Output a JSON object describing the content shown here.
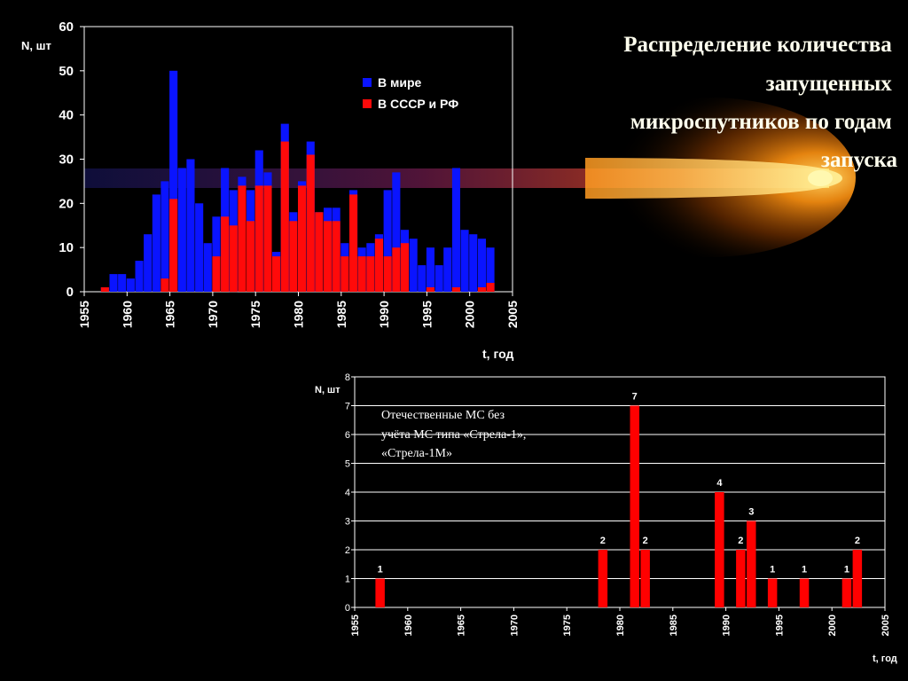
{
  "slide": {
    "title_lines": [
      "Распределение количества",
      "запущенных",
      "микроспутников по годам",
      "запуска"
    ]
  },
  "chart_data": [
    {
      "type": "bar",
      "title": "",
      "ylabel": "N, шт",
      "xlabel": "t, год",
      "xlim": [
        1955,
        2005
      ],
      "ylim": [
        0,
        60
      ],
      "xticks": [
        1955,
        1960,
        1965,
        1970,
        1975,
        1980,
        1985,
        1990,
        1995,
        2000,
        2005
      ],
      "yticks": [
        0,
        10,
        20,
        30,
        40,
        50,
        60
      ],
      "grid": false,
      "legend": "top-right",
      "overlap": true,
      "series": [
        {
          "name": "В мире",
          "color": "#0a14ff",
          "points": [
            [
              1957,
              1
            ],
            [
              1958,
              4
            ],
            [
              1959,
              4
            ],
            [
              1960,
              3
            ],
            [
              1961,
              7
            ],
            [
              1962,
              13
            ],
            [
              1963,
              22
            ],
            [
              1964,
              25
            ],
            [
              1965,
              50
            ],
            [
              1966,
              28
            ],
            [
              1967,
              30
            ],
            [
              1968,
              20
            ],
            [
              1969,
              11
            ],
            [
              1970,
              17
            ],
            [
              1971,
              28
            ],
            [
              1972,
              23
            ],
            [
              1973,
              26
            ],
            [
              1974,
              23
            ],
            [
              1975,
              32
            ],
            [
              1976,
              27
            ],
            [
              1977,
              9
            ],
            [
              1978,
              38
            ],
            [
              1979,
              18
            ],
            [
              1980,
              25
            ],
            [
              1981,
              34
            ],
            [
              1982,
              18
            ],
            [
              1983,
              19
            ],
            [
              1984,
              19
            ],
            [
              1985,
              11
            ],
            [
              1986,
              23
            ],
            [
              1987,
              10
            ],
            [
              1988,
              11
            ],
            [
              1989,
              13
            ],
            [
              1990,
              23
            ],
            [
              1991,
              27
            ],
            [
              1992,
              14
            ],
            [
              1993,
              12
            ],
            [
              1994,
              6
            ],
            [
              1995,
              10
            ],
            [
              1996,
              6
            ],
            [
              1997,
              10
            ],
            [
              1998,
              28
            ],
            [
              1999,
              14
            ],
            [
              2000,
              13
            ],
            [
              2001,
              12
            ],
            [
              2002,
              10
            ]
          ]
        },
        {
          "name": "В СССР и РФ",
          "color": "#ff0a0a",
          "points": [
            [
              1957,
              1
            ],
            [
              1964,
              3
            ],
            [
              1965,
              21
            ],
            [
              1970,
              8
            ],
            [
              1971,
              17
            ],
            [
              1972,
              15
            ],
            [
              1973,
              24
            ],
            [
              1974,
              16
            ],
            [
              1975,
              24
            ],
            [
              1976,
              24
            ],
            [
              1977,
              8
            ],
            [
              1978,
              34
            ],
            [
              1979,
              16
            ],
            [
              1980,
              24
            ],
            [
              1981,
              31
            ],
            [
              1982,
              18
            ],
            [
              1983,
              16
            ],
            [
              1984,
              16
            ],
            [
              1985,
              8
            ],
            [
              1986,
              22
            ],
            [
              1987,
              8
            ],
            [
              1988,
              8
            ],
            [
              1989,
              12
            ],
            [
              1990,
              8
            ],
            [
              1991,
              10
            ],
            [
              1992,
              11
            ],
            [
              1995,
              1
            ],
            [
              1998,
              1
            ],
            [
              2001,
              1
            ],
            [
              2002,
              2
            ]
          ]
        }
      ]
    },
    {
      "type": "bar",
      "title": "",
      "annotation_lines": [
        "Отечественные МС без",
        "учёта МС типа «Стрела-1»,",
        "«Стрела-1М»"
      ],
      "ylabel": "N, шт",
      "xlabel": "t, год",
      "xlim": [
        1955,
        2005
      ],
      "ylim": [
        0,
        8
      ],
      "xticks": [
        1955,
        1960,
        1965,
        1970,
        1975,
        1980,
        1985,
        1990,
        1995,
        2000,
        2005
      ],
      "yticks": [
        0,
        1,
        2,
        3,
        4,
        5,
        6,
        7,
        8
      ],
      "grid": true,
      "series": [
        {
          "name": "",
          "color": "#ff0000",
          "data_labels": true,
          "points": [
            [
              1957,
              1
            ],
            [
              1978,
              2
            ],
            [
              1981,
              7
            ],
            [
              1982,
              2
            ],
            [
              1989,
              4
            ],
            [
              1991,
              2
            ],
            [
              1992,
              3
            ],
            [
              1994,
              1
            ],
            [
              1997,
              1
            ],
            [
              2001,
              1
            ],
            [
              2002,
              2
            ]
          ]
        }
      ]
    }
  ]
}
